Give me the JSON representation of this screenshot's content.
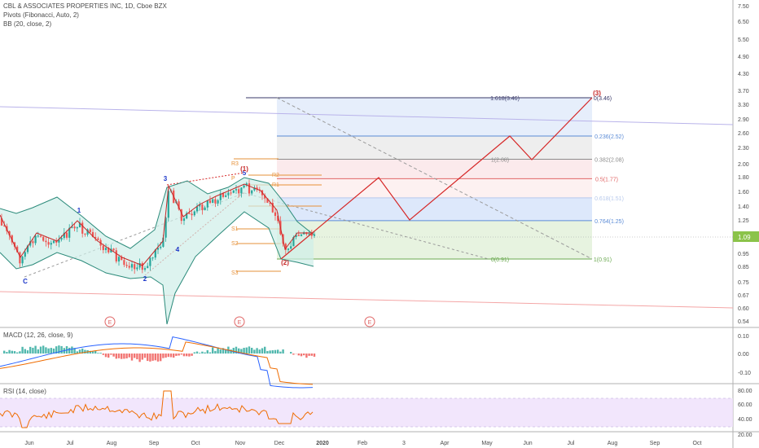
{
  "header": {
    "symbol_line": "CBL & ASSOCIATES PROPERTIES INC, 1D, Cboe BZX",
    "pivots_line": "Pivots (Fibonacci, Auto, 2)",
    "bb_line": "BB (20, close, 2)"
  },
  "macd": {
    "label": "MACD (12, 26, close, 9)"
  },
  "rsi": {
    "label": "RSI (14, close)"
  },
  "colors": {
    "fib_top": "#3a3a6a",
    "fib_blue": "#5b8bd6",
    "fib_grey": "#8c8c8c",
    "fib_red": "#e06666",
    "fib_green": "#6aa84f",
    "projection": "#d62828",
    "bb_fill": "#cfeee8",
    "bb_line": "#2b8a7a",
    "macd_line": "#2962ff",
    "signal_line": "#ef6c00",
    "rsi_line": "#ef6c00",
    "rsi_band": "#efe0fb",
    "pivot_orange": "#e69138"
  },
  "chart_data": {
    "type": "line",
    "price_axis_ticks": [
      "7.50",
      "6.50",
      "5.50",
      "4.90",
      "4.30",
      "3.70",
      "3.30",
      "2.90",
      "2.60",
      "2.30",
      "2.00",
      "1.80",
      "1.60",
      "1.40",
      "1.25",
      "1.09",
      "0.95",
      "0.85",
      "0.75",
      "0.67",
      "0.60",
      "0.54"
    ],
    "current_price": "1.09",
    "macd_axis_ticks": [
      "0.10",
      "0.00",
      "-0.10"
    ],
    "rsi_axis_ticks": [
      "80.00",
      "60.00",
      "40.00",
      "20.00"
    ],
    "time_axis_ticks": [
      "Jun",
      "Jul",
      "Aug",
      "Sep",
      "Oct",
      "Nov",
      "Dec",
      "2020",
      "Feb",
      "3",
      "Apr",
      "May",
      "Jun",
      "Jul",
      "Aug",
      "Sep",
      "Oct"
    ],
    "fib_levels": [
      {
        "label": "1.618(3.46)",
        "value": 3.46
      },
      {
        "label": "0(3.46)",
        "value": 3.46
      },
      {
        "label": "0.236(2.52)",
        "value": 2.52
      },
      {
        "label": "0.382(2.08)",
        "value": 2.08
      },
      {
        "label": "1(2.08)",
        "value": 2.08
      },
      {
        "label": "0.5(1.77)",
        "value": 1.77
      },
      {
        "label": "0.618(1.51)",
        "value": 1.51
      },
      {
        "label": "0.764(1.25)",
        "value": 1.25
      },
      {
        "label": "0(0.91)",
        "value": 0.91
      },
      {
        "label": "1(0.91)",
        "value": 0.91
      }
    ],
    "pivot_labels": [
      "R3",
      "R2",
      "R1",
      "P",
      "S1",
      "S2",
      "S3"
    ],
    "wave_labels": [
      "1",
      "2",
      "3",
      "4",
      "5",
      "C",
      "(1)",
      "(2)",
      "(3)"
    ],
    "earnings_markers": [
      "E",
      "E",
      "E"
    ]
  }
}
